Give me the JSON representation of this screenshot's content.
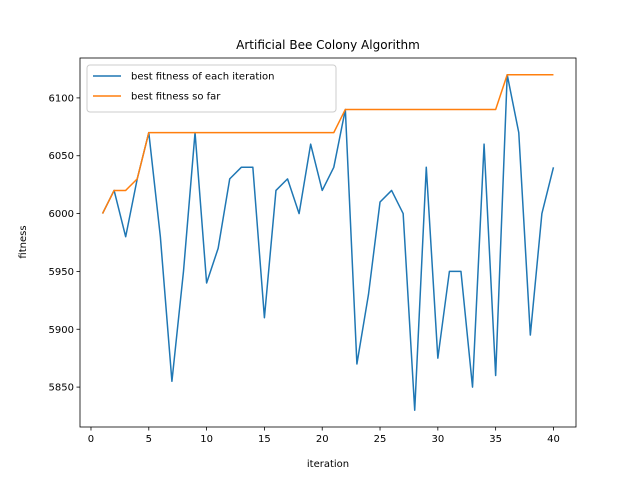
{
  "chart_data": {
    "type": "line",
    "title": "Artificial Bee Colony Algorithm",
    "xlabel": "iteration",
    "ylabel": "fitness",
    "xlim": [
      -0.95,
      41.95
    ],
    "ylim": [
      5815.5,
      6134.5
    ],
    "xticks": [
      0,
      5,
      10,
      15,
      20,
      25,
      30,
      35,
      40
    ],
    "yticks": [
      5850,
      5900,
      5950,
      6000,
      6050,
      6100
    ],
    "grid": false,
    "legend": "top-left",
    "x": [
      1,
      2,
      3,
      4,
      5,
      6,
      7,
      8,
      9,
      10,
      11,
      12,
      13,
      14,
      15,
      16,
      17,
      18,
      19,
      20,
      21,
      22,
      23,
      24,
      25,
      26,
      27,
      28,
      29,
      30,
      31,
      32,
      33,
      34,
      35,
      36,
      37,
      38,
      39,
      40
    ],
    "series": [
      {
        "name": "best fitness of each iteration",
        "color": "#1f77b4",
        "values": [
          6000,
          6020,
          5980,
          6030,
          6070,
          5980,
          5855,
          5950,
          6070,
          5940,
          5970,
          6030,
          6040,
          6040,
          5910,
          6020,
          6030,
          6000,
          6060,
          6020,
          6040,
          6090,
          5870,
          5930,
          6010,
          6020,
          6000,
          5830,
          6040,
          5875,
          5950,
          5950,
          5850,
          6060,
          5860,
          6120,
          6070,
          5895,
          6000,
          6040
        ]
      },
      {
        "name": "best fitness so far",
        "color": "#ff7f0e",
        "values": [
          6000,
          6020,
          6020,
          6030,
          6070,
          6070,
          6070,
          6070,
          6070,
          6070,
          6070,
          6070,
          6070,
          6070,
          6070,
          6070,
          6070,
          6070,
          6070,
          6070,
          6070,
          6090,
          6090,
          6090,
          6090,
          6090,
          6090,
          6090,
          6090,
          6090,
          6090,
          6090,
          6090,
          6090,
          6090,
          6120,
          6120,
          6120,
          6120,
          6120
        ]
      }
    ]
  }
}
